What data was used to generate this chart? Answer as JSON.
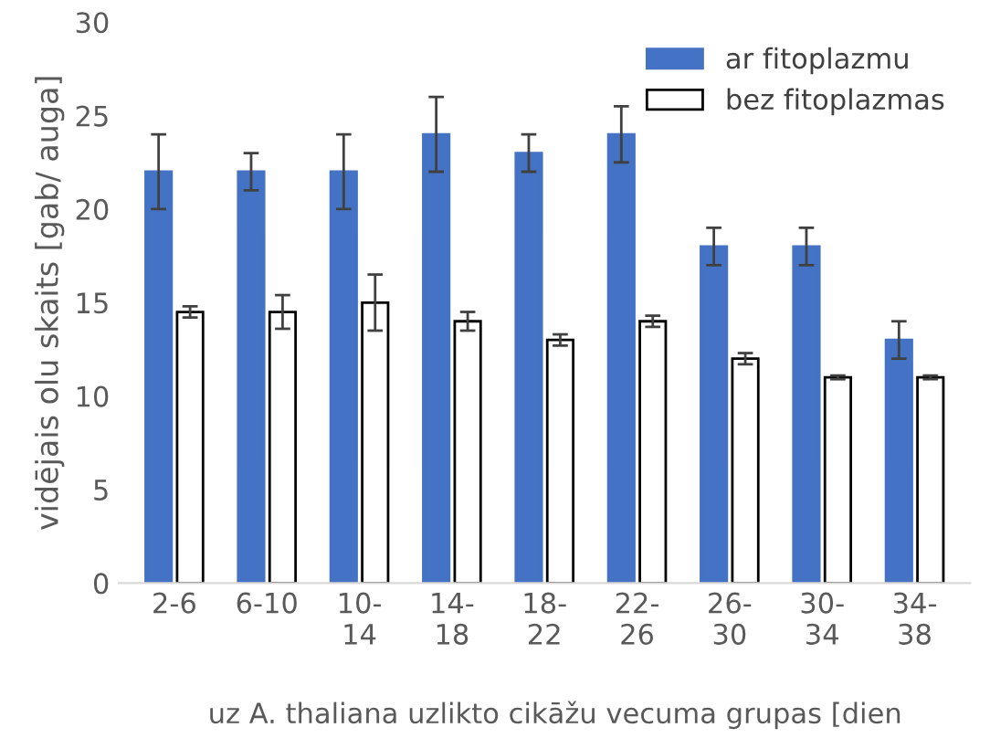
{
  "chart_data": {
    "type": "bar",
    "ylabel": "vidējais olu skaits [gab/ auga]",
    "xlabel": "uz A. thaliana uzlikto cikāžu vecuma grupas [dien",
    "categories": [
      "2-6",
      "6-10",
      "10-\n14",
      "14-\n18",
      "18-\n22",
      "22-\n26",
      "26-\n30",
      "30-\n34",
      "34-\n38"
    ],
    "series": [
      {
        "name": "ar fitoplazmu",
        "color": "#4472c4",
        "values": [
          22,
          22,
          22,
          24,
          23,
          24,
          18,
          18,
          13
        ],
        "errors": [
          2,
          1,
          2,
          2,
          1,
          1.5,
          1,
          1,
          1
        ]
      },
      {
        "name": "bez fitoplazmas",
        "color": "#ffffff",
        "values": [
          14.5,
          14.5,
          15,
          14,
          13,
          14,
          12,
          11,
          11
        ],
        "errors": [
          0.3,
          0.9,
          1.5,
          0.5,
          0.3,
          0.3,
          0.3,
          0.1,
          0.1
        ]
      }
    ],
    "ylim": [
      0,
      30
    ],
    "yticks": [
      0,
      5,
      10,
      15,
      20,
      25,
      30
    ],
    "grid": false,
    "legend": "top right"
  }
}
